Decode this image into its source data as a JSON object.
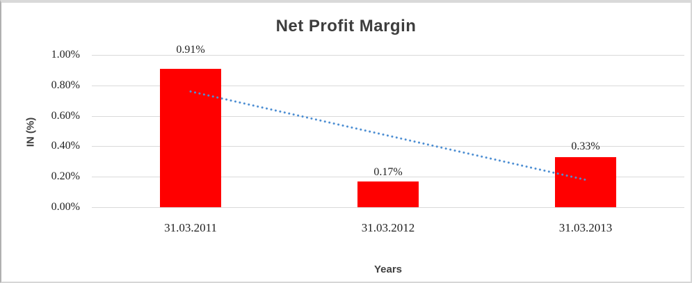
{
  "window": {
    "background": "#ffffff",
    "border_color": "#d9d9d9"
  },
  "chart_data": {
    "type": "bar",
    "title": "Net Profit Margin",
    "xlabel": "Years",
    "ylabel": "IN (%)",
    "categories": [
      "31.03.2011",
      "31.03.2012",
      "31.03.2013"
    ],
    "values": [
      0.91,
      0.17,
      0.33
    ],
    "data_labels": [
      "0.91%",
      "0.17%",
      "0.33%"
    ],
    "ylim": [
      0,
      1.0
    ],
    "ytick_step": 0.2,
    "ytick_labels": [
      "0.00%",
      "0.20%",
      "0.40%",
      "0.60%",
      "0.80%",
      "1.00%"
    ],
    "grid": true,
    "legend": "none",
    "colors": {
      "bar": "#ff0000",
      "gridline": "#d9d9d9",
      "trendline": "#4e8fd3",
      "title_text": "#3d3d3d",
      "axis_title_text": "#404040",
      "tick_text": "#1f1f1f"
    },
    "trendline": {
      "type": "linear",
      "style": "dotted",
      "color": "#4e8fd3",
      "start_value": 0.76,
      "end_value": 0.18
    }
  }
}
